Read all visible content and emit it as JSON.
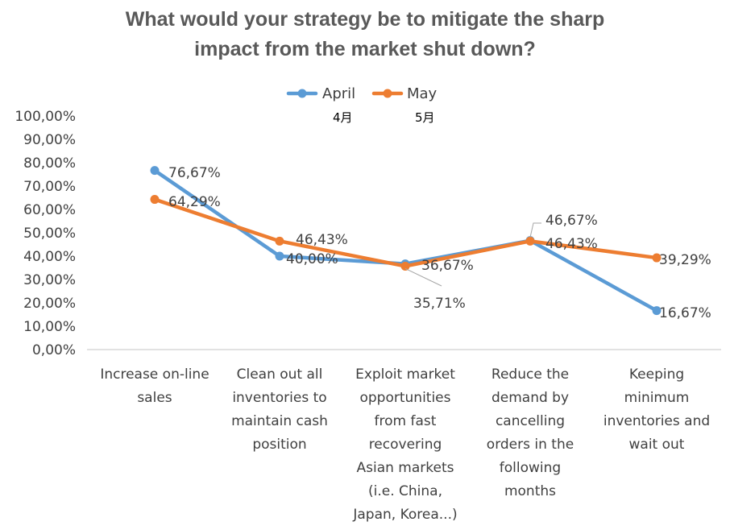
{
  "chart_data": {
    "type": "line",
    "title": [
      "What would your strategy be to mitigate the sharp",
      "impact from the market shut down?"
    ],
    "categories": [
      [
        "Increase on-line",
        "sales"
      ],
      [
        "Clean out all",
        "inventories to",
        "maintain cash",
        "position"
      ],
      [
        "Exploit market",
        "opportunities",
        "from fast",
        "recovering",
        "Asian markets",
        "(i.e. China,",
        "Japan, Korea...)"
      ],
      [
        "Reduce the",
        "demand by",
        "cancelling",
        "orders in the",
        "following",
        "months"
      ],
      [
        "Keeping",
        "minimum",
        "inventories and",
        "wait out"
      ]
    ],
    "series": [
      {
        "name": "April",
        "sublabel": "4月",
        "color": "#5B9BD5",
        "values": [
          76.67,
          40.0,
          36.67,
          46.67,
          16.67
        ],
        "labels": [
          "76,67%",
          "40,00%",
          "36,67%",
          "46,67%",
          "16,67%"
        ]
      },
      {
        "name": "May",
        "sublabel": "5月",
        "color": "#ED7D31",
        "values": [
          64.29,
          46.43,
          35.71,
          46.43,
          39.29
        ],
        "labels": [
          "64,29%",
          "46,43%",
          "35,71%",
          "46,43%",
          "39,29%"
        ]
      }
    ],
    "y_ticks": [
      "0,00%",
      "10,00%",
      "20,00%",
      "30,00%",
      "40,00%",
      "50,00%",
      "60,00%",
      "70,00%",
      "80,00%",
      "90,00%",
      "100,00%"
    ],
    "ylim": [
      0,
      100
    ],
    "grid": false,
    "legend": "top-center"
  }
}
